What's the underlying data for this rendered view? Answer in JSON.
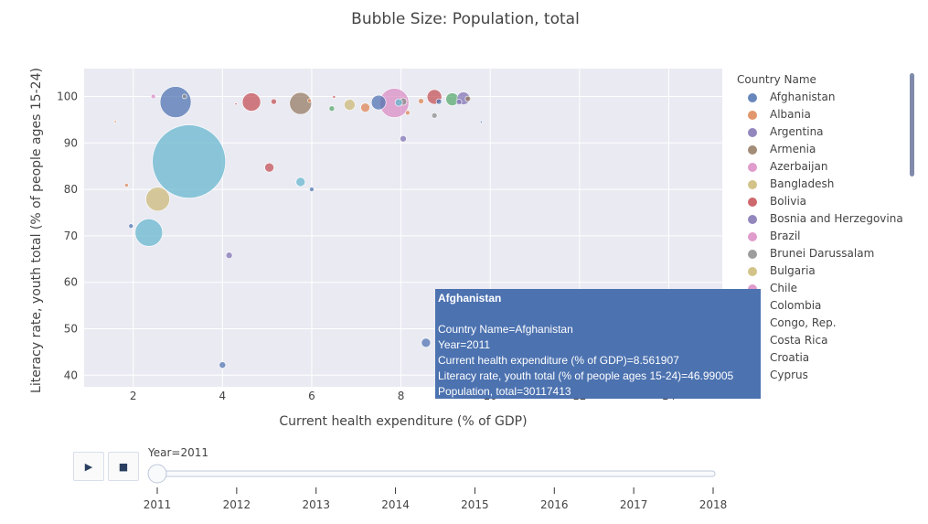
{
  "chart_data": {
    "type": "scatter",
    "title": "Bubble Size: Population, total",
    "xlabel": "Current health expenditure (% of GDP)",
    "ylabel": "Literacy rate, youth total (% of people ages 15-24)",
    "xlim": [
      0.9,
      15.2
    ],
    "ylim": [
      37.5,
      106
    ],
    "x_ticks": [
      2,
      4,
      6,
      8,
      10,
      12,
      14
    ],
    "y_ticks": [
      40,
      50,
      60,
      70,
      80,
      90,
      100
    ],
    "grid": true,
    "legend_title": "Country Name",
    "legend_placement": "right",
    "size_label": "Population, total",
    "legend": [
      {
        "name": "Afghanistan",
        "color": "#4c72b0"
      },
      {
        "name": "Albania",
        "color": "#dd8452"
      },
      {
        "name": "Argentina",
        "color": "#8172b3"
      },
      {
        "name": "Armenia",
        "color": "#937860"
      },
      {
        "name": "Azerbaijan",
        "color": "#da8bc3"
      },
      {
        "name": "Bangladesh",
        "color": "#ccb974"
      },
      {
        "name": "Bolivia",
        "color": "#c44e52"
      },
      {
        "name": "Bosnia and Herzegovina",
        "color": "#8172b3"
      },
      {
        "name": "Brazil",
        "color": "#da8bc3"
      },
      {
        "name": "Brunei Darussalam",
        "color": "#8c8c8c"
      },
      {
        "name": "Bulgaria",
        "color": "#ccb974"
      },
      {
        "name": "Chile",
        "color": "#da8bc3"
      },
      {
        "name": "Colombia",
        "color": ""
      },
      {
        "name": "Congo, Rep.",
        "color": ""
      },
      {
        "name": "Costa Rica",
        "color": ""
      },
      {
        "name": "Croatia",
        "color": ""
      },
      {
        "name": "Cyprus",
        "color": ""
      }
    ],
    "points": [
      {
        "x": 3.25,
        "y": 86.0,
        "r": 40,
        "color": "#64b5cd"
      },
      {
        "x": 2.95,
        "y": 98.8,
        "r": 17,
        "color": "#4c72b0"
      },
      {
        "x": 2.35,
        "y": 70.7,
        "r": 15,
        "color": "#64b5cd"
      },
      {
        "x": 2.55,
        "y": 77.9,
        "r": 13,
        "color": "#ccb974"
      },
      {
        "x": 5.75,
        "y": 98.5,
        "r": 12,
        "color": "#937860"
      },
      {
        "x": 7.85,
        "y": 98.6,
        "r": 16,
        "color": "#da8bc3"
      },
      {
        "x": 4.65,
        "y": 98.8,
        "r": 10,
        "color": "#c44e52"
      },
      {
        "x": 7.5,
        "y": 98.7,
        "r": 8,
        "color": "#4c72b0"
      },
      {
        "x": 8.75,
        "y": 99.9,
        "r": 8,
        "color": "#c44e52"
      },
      {
        "x": 9.15,
        "y": 99.4,
        "r": 7,
        "color": "#55a868"
      },
      {
        "x": 9.4,
        "y": 99.6,
        "r": 7,
        "color": "#8172b3"
      },
      {
        "x": 6.85,
        "y": 98.2,
        "r": 6,
        "color": "#ccb974"
      },
      {
        "x": 7.2,
        "y": 97.6,
        "r": 5,
        "color": "#dd8452"
      },
      {
        "x": 5.05,
        "y": 84.7,
        "r": 5,
        "color": "#c44e52"
      },
      {
        "x": 5.75,
        "y": 81.6,
        "r": 5,
        "color": "#64b5cd"
      },
      {
        "x": 8.05,
        "y": 98.9,
        "r": 4,
        "color": "#8c8c8c"
      },
      {
        "x": 7.95,
        "y": 98.7,
        "r": 4,
        "color": "#64b5cd"
      },
      {
        "x": 8.56,
        "y": 46.99,
        "r": 5,
        "color": "#4c72b0"
      },
      {
        "x": 8.05,
        "y": 90.9,
        "r": 3.5,
        "color": "#8172b3"
      },
      {
        "x": 4.15,
        "y": 65.8,
        "r": 3.5,
        "color": "#8172b3"
      },
      {
        "x": 4.0,
        "y": 42.2,
        "r": 3.5,
        "color": "#4c72b0"
      },
      {
        "x": 6.45,
        "y": 97.4,
        "r": 3,
        "color": "#55a868"
      },
      {
        "x": 8.75,
        "y": 95.9,
        "r": 3,
        "color": "#8c8c8c"
      },
      {
        "x": 5.15,
        "y": 98.9,
        "r": 3,
        "color": "#c44e52"
      },
      {
        "x": 9.5,
        "y": 99.5,
        "r": 3,
        "color": "#937860"
      },
      {
        "x": 8.45,
        "y": 99.0,
        "r": 3,
        "color": "#dd8452"
      },
      {
        "x": 8.85,
        "y": 98.9,
        "r": 3,
        "color": "#4c72b0"
      },
      {
        "x": 2.45,
        "y": 100.0,
        "r": 2.5,
        "color": "#da8bc3"
      },
      {
        "x": 3.15,
        "y": 100.0,
        "r": 2.5,
        "color": "#8c8c8c"
      },
      {
        "x": 6.0,
        "y": 80.0,
        "r": 2.5,
        "color": "#4c72b0"
      },
      {
        "x": 8.15,
        "y": 96.5,
        "r": 2.5,
        "color": "#dd8452"
      },
      {
        "x": 1.95,
        "y": 72.1,
        "r": 2.5,
        "color": "#4c72b0"
      },
      {
        "x": 1.85,
        "y": 80.9,
        "r": 2,
        "color": "#dd8452"
      },
      {
        "x": 6.5,
        "y": 99.9,
        "r": 1.5,
        "color": "#c44e52"
      },
      {
        "x": 1.6,
        "y": 94.6,
        "r": 1.2,
        "color": "#dd8452"
      },
      {
        "x": 9.8,
        "y": 94.5,
        "r": 1.2,
        "color": "#4c72b0"
      },
      {
        "x": 4.3,
        "y": 98.4,
        "r": 1.2,
        "color": "#c44e52"
      },
      {
        "x": 5.95,
        "y": 99.1,
        "r": 2,
        "color": "#dd8452"
      },
      {
        "x": 9.3,
        "y": 98.8,
        "r": 3,
        "color": "#8172b3"
      }
    ],
    "hover": {
      "title": "Afghanistan",
      "lines": [
        "Country Name=Afghanistan",
        "Year=2011",
        "Current health expenditure (% of GDP)=8.561907",
        "Literacy rate, youth total (% of people ages 15-24)=46.99005",
        "Population, total=30117413"
      ]
    },
    "slider": {
      "label": "Year=2011",
      "years": [
        "2011",
        "2012",
        "2013",
        "2014",
        "2015",
        "2016",
        "2017",
        "2018"
      ],
      "current": "2011"
    }
  },
  "controls": {
    "play_icon": "play-icon",
    "stop_icon": "stop-icon",
    "play_glyph": "▶",
    "stop_glyph": "■"
  }
}
